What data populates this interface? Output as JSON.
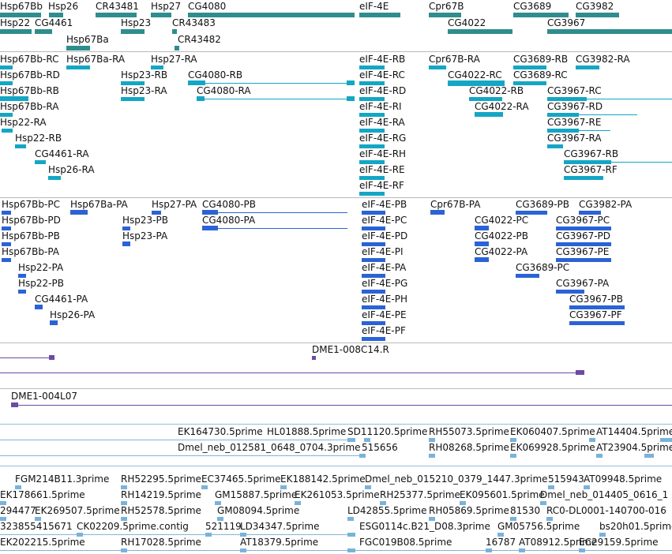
{
  "colors": {
    "gene": "#2f8d8d",
    "transcript": "#14a6c4",
    "protein": "#2b63d6",
    "clone": "#6d4aa6",
    "est": "#7fb6d8",
    "separator": "#b9b9b9"
  },
  "icons": {
    "strand_right": "►",
    "strand_left": "◄"
  },
  "genes": [
    "Hsp67Bb",
    "Hsp26",
    "CR43481",
    "Hsp27",
    "CG4080",
    "eIF-4E",
    "Cpr67B",
    "CG3689",
    "CG3982",
    "Hsp22",
    "CG4461",
    "Hsp23",
    "CR43483",
    "CG4022",
    "CG3967",
    "Hsp67Ba",
    "CR43482"
  ],
  "transcripts": [
    "Hsp67Bb-RC",
    "Hsp67Ba-RA",
    "Hsp27-RA",
    "eIF-4E-RB",
    "Cpr67B-RA",
    "CG3689-RB",
    "CG3982-RA",
    "Hsp67Bb-RD",
    "Hsp23-RB",
    "CG4080-RB",
    "eIF-4E-RC",
    "CG4022-RC",
    "CG3689-RC",
    "Hsp67Bb-RB",
    "Hsp23-RA",
    "CG4080-RA",
    "eIF-4E-RD",
    "CG4022-RB",
    "CG3967-RC",
    "Hsp67Bb-RA",
    "eIF-4E-RI",
    "CG4022-RA",
    "CG3967-RD",
    "Hsp22-RA",
    "eIF-4E-RA",
    "CG3967-RE",
    "Hsp22-RB",
    "eIF-4E-RG",
    "CG3967-RA",
    "CG4461-RA",
    "eIF-4E-RH",
    "CG3967-RB",
    "Hsp26-RA",
    "eIF-4E-RE",
    "CG3967-RF",
    "eIF-4E-RF"
  ],
  "proteins": [
    "Hsp67Bb-PC",
    "Hsp67Ba-PA",
    "Hsp27-PA",
    "CG4080-PB",
    "eIF-4E-PB",
    "Cpr67B-PA",
    "CG3689-PB",
    "CG3982-PA",
    "Hsp67Bb-PD",
    "Hsp23-PB",
    "CG4080-PA",
    "eIF-4E-PC",
    "CG4022-PC",
    "CG3967-PC",
    "Hsp67Bb-PB",
    "Hsp23-PA",
    "eIF-4E-PD",
    "CG4022-PB",
    "CG3967-PD",
    "Hsp67Bb-PA",
    "eIF-4E-PI",
    "CG4022-PA",
    "CG3967-PE",
    "Hsp22-PA",
    "eIF-4E-PA",
    "CG3689-PC",
    "Hsp22-PB",
    "eIF-4E-PG",
    "CG3967-PA",
    "CG4461-PA",
    "eIF-4E-PH",
    "CG3967-PB",
    "Hsp26-PA",
    "eIF-4E-PE",
    "CG3967-PF",
    "eIF-4E-PF"
  ],
  "clones": [
    "DME1-008C14.R",
    "DME1-004L07"
  ],
  "ests": [
    "EK164730.5prime",
    "HL01888.5prime",
    "SD11120.5prime",
    "RH55073.5prime",
    "EK060407.5prime",
    "AT14404.5prime",
    "Dmel_neb_012581_0648_0704.3prime",
    "515656",
    "RH08268.5prime",
    "EK069928.5prime",
    "AT23904.5prime",
    "FGM214B11.3prime",
    "RH52295.5prime",
    "EC37465.5prime",
    "EK188142.5prime",
    "Dmel_neb_015210_0379_1447.3prime",
    "515943",
    "AT09948.5prime",
    "EK178661.5prime",
    "RH14219.5prime",
    "GM15887.5prime",
    "EK261053.5prime",
    "RH25377.5prime",
    "EK095601.5prime",
    "Dmel_neb_014405_0616_1",
    "294477",
    "EK269507.5prime",
    "RH52578.5prime",
    "GM08094.5prime",
    "LD42855.5prime",
    "RH05869.5prime",
    "81530",
    "RC0-DL0001-140700-016",
    "323855415671",
    "CK02209.5prime.contig",
    "521119",
    "LD34347.5prime",
    "ESG0114c.B21_D08.3prime",
    "GM05756.5prime",
    "bs20h01.5prime",
    "EK202215.5prime",
    "RH17028.5prime",
    "AT18379.5prime",
    "FGC019B08.5prime",
    "16787",
    "AT08912.5prime",
    "EC29159.5prime"
  ]
}
